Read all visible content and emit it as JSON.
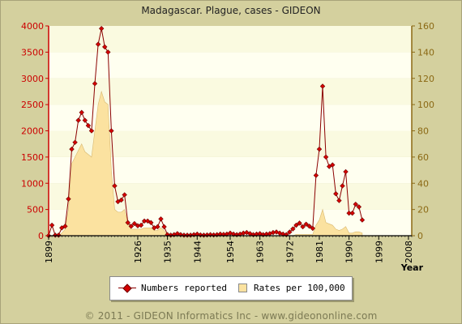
{
  "title": "Madagascar. Plague, cases - GIDEON",
  "copyright": "© 2011 - GIDEON Informatics Inc - www.gideononline.com",
  "colors": {
    "cases_line": "#8b0000",
    "cases_marker": "#d40000",
    "rate_fill": "#fbe2a0",
    "left_axis": "#cc0000",
    "right_axis": "#8b6914",
    "band_light": "#fffff0",
    "band_dark": "#fafae0"
  },
  "chart_data": {
    "type": "line",
    "title": "Madagascar. Plague, cases - GIDEON",
    "xlabel": "Year",
    "x_ticks": [
      "1899",
      "1926",
      "1935",
      "1944",
      "1954",
      "1963",
      "1972",
      "1981",
      "1990",
      "1999",
      "2008"
    ],
    "y_left": {
      "ylim": [
        0,
        4000
      ],
      "ticks": [
        0,
        500,
        1000,
        1500,
        2000,
        2500,
        3000,
        3500,
        4000
      ]
    },
    "y_right": {
      "ylim": [
        0,
        160
      ],
      "ticks": [
        0,
        20,
        40,
        60,
        80,
        100,
        120,
        140,
        160
      ]
    },
    "series": [
      {
        "name": "Numbers reported",
        "axis": "left",
        "points": [
          [
            1899,
            0
          ],
          [
            1900,
            200
          ],
          [
            1901,
            10
          ],
          [
            1902,
            10
          ],
          [
            1903,
            150
          ],
          [
            1904,
            180
          ],
          [
            1905,
            700
          ],
          [
            1906,
            1650
          ],
          [
            1907,
            1780
          ],
          [
            1908,
            2200
          ],
          [
            1909,
            2350
          ],
          [
            1910,
            2200
          ],
          [
            1911,
            2100
          ],
          [
            1912,
            2000
          ],
          [
            1913,
            2900
          ],
          [
            1914,
            3650
          ],
          [
            1915,
            3950
          ],
          [
            1916,
            3600
          ],
          [
            1917,
            3500
          ],
          [
            1918,
            2000
          ],
          [
            1919,
            950
          ],
          [
            1920,
            650
          ],
          [
            1921,
            680
          ],
          [
            1922,
            780
          ],
          [
            1923,
            250
          ],
          [
            1924,
            180
          ],
          [
            1925,
            230
          ],
          [
            1926,
            190
          ],
          [
            1927,
            200
          ],
          [
            1928,
            280
          ],
          [
            1929,
            280
          ],
          [
            1930,
            250
          ],
          [
            1931,
            150
          ],
          [
            1932,
            170
          ],
          [
            1933,
            320
          ],
          [
            1934,
            170
          ],
          [
            1935,
            20
          ],
          [
            1936,
            10
          ],
          [
            1937,
            20
          ],
          [
            1938,
            40
          ],
          [
            1939,
            20
          ],
          [
            1940,
            10
          ],
          [
            1941,
            10
          ],
          [
            1942,
            10
          ],
          [
            1943,
            20
          ],
          [
            1944,
            30
          ],
          [
            1945,
            15
          ],
          [
            1946,
            10
          ],
          [
            1947,
            15
          ],
          [
            1948,
            20
          ],
          [
            1949,
            15
          ],
          [
            1950,
            20
          ],
          [
            1951,
            30
          ],
          [
            1952,
            25
          ],
          [
            1953,
            30
          ],
          [
            1954,
            50
          ],
          [
            1955,
            30
          ],
          [
            1956,
            20
          ],
          [
            1957,
            30
          ],
          [
            1958,
            50
          ],
          [
            1959,
            60
          ],
          [
            1960,
            40
          ],
          [
            1961,
            20
          ],
          [
            1962,
            30
          ],
          [
            1963,
            40
          ],
          [
            1964,
            20
          ],
          [
            1965,
            30
          ],
          [
            1966,
            40
          ],
          [
            1967,
            60
          ],
          [
            1968,
            70
          ],
          [
            1969,
            50
          ],
          [
            1970,
            30
          ],
          [
            1971,
            20
          ],
          [
            1972,
            70
          ],
          [
            1973,
            130
          ],
          [
            1974,
            200
          ],
          [
            1975,
            240
          ],
          [
            1976,
            170
          ],
          [
            1977,
            220
          ],
          [
            1978,
            180
          ],
          [
            1979,
            140
          ],
          [
            1980,
            1150
          ],
          [
            1981,
            1650
          ],
          [
            1982,
            2850
          ],
          [
            1983,
            1500
          ],
          [
            1984,
            1320
          ],
          [
            1985,
            1350
          ],
          [
            1986,
            800
          ],
          [
            1987,
            670
          ],
          [
            1988,
            950
          ],
          [
            1989,
            1220
          ],
          [
            1990,
            430
          ],
          [
            1991,
            430
          ],
          [
            1992,
            600
          ],
          [
            1993,
            550
          ],
          [
            1994,
            300
          ]
        ]
      },
      {
        "name": "Rates per 100,000",
        "axis": "right",
        "points": [
          [
            1899,
            0
          ],
          [
            1900,
            0
          ],
          [
            1901,
            0
          ],
          [
            1902,
            0
          ],
          [
            1903,
            2
          ],
          [
            1904,
            5
          ],
          [
            1905,
            20
          ],
          [
            1906,
            55
          ],
          [
            1907,
            60
          ],
          [
            1908,
            65
          ],
          [
            1909,
            70
          ],
          [
            1910,
            64
          ],
          [
            1911,
            62
          ],
          [
            1912,
            60
          ],
          [
            1913,
            80
          ],
          [
            1914,
            100
          ],
          [
            1915,
            110
          ],
          [
            1916,
            102
          ],
          [
            1917,
            100
          ],
          [
            1918,
            50
          ],
          [
            1919,
            20
          ],
          [
            1920,
            18
          ],
          [
            1921,
            18
          ],
          [
            1922,
            20
          ],
          [
            1923,
            10
          ],
          [
            1924,
            5
          ],
          [
            1925,
            5
          ],
          [
            1926,
            5
          ],
          [
            1927,
            5
          ],
          [
            1928,
            6
          ],
          [
            1929,
            6
          ],
          [
            1930,
            6
          ],
          [
            1931,
            4
          ],
          [
            1932,
            4
          ],
          [
            1933,
            6
          ],
          [
            1934,
            4
          ],
          [
            1935,
            0
          ],
          [
            1936,
            0
          ],
          [
            1937,
            0
          ],
          [
            1938,
            0
          ],
          [
            1939,
            0
          ],
          [
            1940,
            0
          ],
          [
            1941,
            0
          ],
          [
            1942,
            0
          ],
          [
            1943,
            0
          ],
          [
            1944,
            0
          ],
          [
            1945,
            0
          ],
          [
            1946,
            0
          ],
          [
            1947,
            0
          ],
          [
            1948,
            0
          ],
          [
            1949,
            0
          ],
          [
            1950,
            0
          ],
          [
            1951,
            0
          ],
          [
            1952,
            0
          ],
          [
            1953,
            0
          ],
          [
            1954,
            0
          ],
          [
            1955,
            0
          ],
          [
            1956,
            0
          ],
          [
            1957,
            0
          ],
          [
            1958,
            0
          ],
          [
            1959,
            0
          ],
          [
            1960,
            0
          ],
          [
            1961,
            0
          ],
          [
            1962,
            0
          ],
          [
            1963,
            0
          ],
          [
            1964,
            0
          ],
          [
            1965,
            0
          ],
          [
            1966,
            0
          ],
          [
            1967,
            0
          ],
          [
            1968,
            0
          ],
          [
            1969,
            0
          ],
          [
            1970,
            0
          ],
          [
            1971,
            0
          ],
          [
            1972,
            0
          ],
          [
            1973,
            0
          ],
          [
            1974,
            1
          ],
          [
            1975,
            1
          ],
          [
            1976,
            1
          ],
          [
            1977,
            1
          ],
          [
            1978,
            1
          ],
          [
            1979,
            1
          ],
          [
            1980,
            8
          ],
          [
            1981,
            12
          ],
          [
            1982,
            20
          ],
          [
            1983,
            10
          ],
          [
            1984,
            9
          ],
          [
            1985,
            8
          ],
          [
            1986,
            5
          ],
          [
            1987,
            4
          ],
          [
            1988,
            5
          ],
          [
            1989,
            7
          ],
          [
            1990,
            2
          ],
          [
            1991,
            2
          ],
          [
            1992,
            3
          ],
          [
            1993,
            3
          ],
          [
            1994,
            2
          ]
        ]
      }
    ],
    "grid": true,
    "legend_position": "bottom-center"
  }
}
